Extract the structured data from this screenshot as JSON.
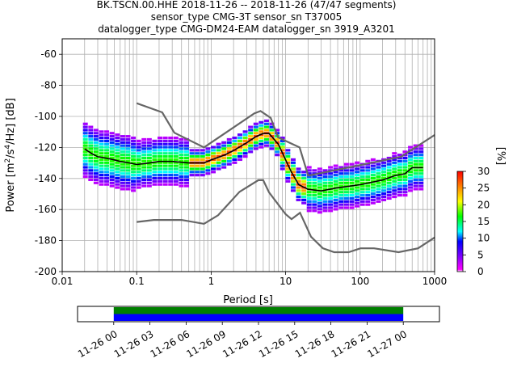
{
  "header": {
    "line1": "BK.TSCN.00.HHE   2018-11-26 -- 2018-11-26  (47/47 segments)",
    "line2": "sensor_type CMG-3T sensor_sn T37005",
    "line3": "datalogger_type CMG-DM24-EAM datalogger_sn 3919_A3201"
  },
  "chart_data": [
    {
      "type": "heatmap",
      "title": "BK.TSCN.00.HHE   2018-11-26 -- 2018-11-26  (47/47 segments)",
      "xlabel": "Period [s]",
      "ylabel": "Power [m²/s⁴/Hz] [dB]",
      "x_scale": "log",
      "xlim": [
        0.01,
        1000
      ],
      "ylim": [
        -200,
        -50
      ],
      "x_ticks": [
        "0.01",
        "0.1",
        "1",
        "10",
        "100",
        "1000"
      ],
      "y_ticks": [
        "-60",
        "-80",
        "-100",
        "-120",
        "-140",
        "-160",
        "-180",
        "-200"
      ],
      "grid": true,
      "colorbar": {
        "label": "[%]",
        "min": 0,
        "max": 30,
        "ticks": [
          "0",
          "5",
          "10",
          "15",
          "20",
          "25",
          "30"
        ]
      },
      "series": [
        {
          "name": "",
          "style": "mode",
          "x": [
            0.02,
            0.025,
            0.03,
            0.04,
            0.05,
            0.06,
            0.08,
            0.1,
            0.15,
            0.2,
            0.3,
            0.5,
            0.8,
            1,
            1.5,
            2,
            3,
            4,
            5,
            6,
            8,
            10,
            12,
            15,
            20,
            30,
            50,
            100,
            200,
            300,
            400,
            500,
            700
          ],
          "y": [
            -121,
            -124,
            -126,
            -127,
            -128,
            -129,
            -130,
            -131,
            -130,
            -129,
            -129,
            -130,
            -130,
            -128,
            -125,
            -122,
            -117,
            -113,
            -111,
            -111,
            -118,
            -128,
            -136,
            -144,
            -147,
            -148,
            -146,
            -144,
            -141,
            -138,
            -137,
            -133,
            -133
          ]
        },
        {
          "name": "",
          "style": "reference-high",
          "x": [
            0.1,
            0.22,
            0.32,
            0.8,
            3.8,
            4.6,
            6.3,
            7.9,
            15.4,
            20,
            21,
            354.8,
            1000
          ],
          "y": [
            -91.5,
            -97.4,
            -110.5,
            -120,
            -98,
            -96.5,
            -101,
            -113.5,
            -120,
            -138,
            -138,
            -126,
            -112
          ]
        },
        {
          "name": "",
          "style": "reference-low",
          "x": [
            0.1,
            0.17,
            0.4,
            0.8,
            1.24,
            2.4,
            4.3,
            5,
            6,
            10,
            12,
            15.6,
            21.9,
            31.6,
            45,
            70,
            101,
            154,
            328,
            600,
            1000
          ],
          "y": [
            -168,
            -166.7,
            -166.7,
            -169.2,
            -163.7,
            -148.6,
            -141.1,
            -141.1,
            -149,
            -163,
            -166.2,
            -162.1,
            -177.5,
            -185,
            -187.5,
            -187.5,
            -185,
            -185,
            -187.5,
            -185,
            -178
          ]
        }
      ]
    },
    {
      "type": "timeline",
      "x_ticks": [
        "11-26 00",
        "11-26 03",
        "11-26 06",
        "11-26 09",
        "11-26 12",
        "11-26 15",
        "11-26 18",
        "11-26 21",
        "11-27 00"
      ],
      "xlim_hours": [
        -3,
        27
      ],
      "bars": [
        {
          "name": "",
          "start_hour": 0,
          "end_hour": 24,
          "color": "#008000"
        },
        {
          "name": "",
          "start_hour": 0,
          "end_hour": 24,
          "color": "#0000ff"
        }
      ]
    }
  ],
  "colors": {
    "mode_line": "#000000",
    "reference_line": "#666666",
    "grid": "#b0b0b0"
  }
}
